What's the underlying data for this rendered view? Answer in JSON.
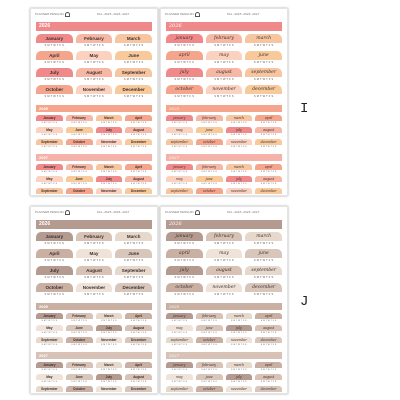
{
  "brand": "PLANNER PENGUIN",
  "product_code": "KAL-2025-2026-2027",
  "months_proper": [
    "January",
    "February",
    "March",
    "April",
    "May",
    "June",
    "July",
    "August",
    "September",
    "October",
    "November",
    "December"
  ],
  "months_lower": [
    "january",
    "february",
    "march",
    "april",
    "may",
    "june",
    "july",
    "august",
    "september",
    "october",
    "november",
    "december"
  ],
  "weekdays": "S M T W T F S",
  "years": {
    "y2026": "2026",
    "y2025": "2025",
    "y2027": "2027"
  },
  "variant_labels": {
    "i": "I",
    "j": "J"
  },
  "palettes": {
    "warm": {
      "section_bg": "#f08a8a",
      "section_bg_2025": "#f5a58c",
      "section_bg_2027": "#f5b2a8",
      "tabs": [
        "#f08a8a",
        "#f6b7a4",
        "#f7c6a0",
        "#f5a58c",
        "#fbd2c0",
        "#f8c99a",
        "#f08a8a",
        "#f6b7a4",
        "#f7c6a0",
        "#f5a58c",
        "#fbd2c0",
        "#f8c99a"
      ]
    },
    "neutral": {
      "section_bg": "#b59a8f",
      "section_bg_2025": "#c9b0a3",
      "section_bg_2027": "#d7c2b5",
      "tabs": [
        "#b59a8f",
        "#d7c2b5",
        "#e7d8cc",
        "#c9b0a3",
        "#efe3d9",
        "#d8c6bb",
        "#b59a8f",
        "#d7c2b5",
        "#e7d8cc",
        "#c9b0a3",
        "#efe3d9",
        "#d8c6bb"
      ]
    }
  }
}
